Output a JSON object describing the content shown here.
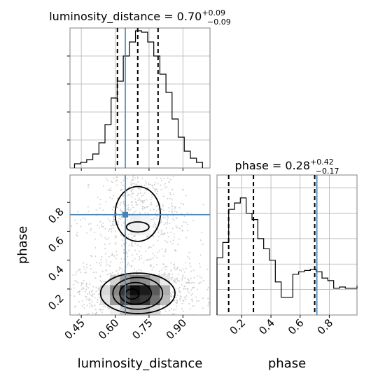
{
  "chart_data": {
    "type": "corner",
    "parameters": [
      "luminosity_distance",
      "phase"
    ],
    "truths": {
      "luminosity_distance": 0.645,
      "phase": 0.715
    },
    "panels": [
      {
        "id": "hist-luminosity_distance",
        "type": "histogram",
        "parameter": "luminosity_distance",
        "title_text": "luminosity_distance = 0.70",
        "title_sup": "+0.09",
        "title_sub": "−0.09",
        "xlim": [
          0.4,
          1.02
        ],
        "ylim": [
          0,
          1.0
        ],
        "bin_edges": [
          0.42,
          0.447,
          0.474,
          0.501,
          0.528,
          0.555,
          0.582,
          0.609,
          0.636,
          0.663,
          0.69,
          0.717,
          0.744,
          0.771,
          0.798,
          0.825,
          0.852,
          0.879,
          0.906,
          0.933,
          0.96,
          0.987
        ],
        "counts": [
          0.03,
          0.04,
          0.06,
          0.1,
          0.18,
          0.31,
          0.5,
          0.62,
          0.8,
          0.9,
          0.98,
          0.97,
          0.9,
          0.8,
          0.67,
          0.54,
          0.35,
          0.22,
          0.12,
          0.07,
          0.04
        ],
        "quantiles": [
          0.61,
          0.7,
          0.79
        ],
        "truth": 0.645
      },
      {
        "id": "hist-phase",
        "type": "histogram",
        "parameter": "phase",
        "title_text": "phase = 0.28",
        "title_sup": "+0.42",
        "title_sub": "−0.17",
        "xlim": [
          0.03,
          0.99
        ],
        "ylim": [
          0,
          1.1
        ],
        "xticks": [
          0.2,
          0.4,
          0.6,
          0.8
        ],
        "xlabel": "phase",
        "bin_edges": [
          0.03,
          0.07,
          0.11,
          0.15,
          0.19,
          0.23,
          0.27,
          0.31,
          0.35,
          0.39,
          0.43,
          0.47,
          0.51,
          0.55,
          0.59,
          0.63,
          0.67,
          0.71,
          0.75,
          0.79,
          0.83,
          0.87,
          0.91,
          0.95,
          0.99
        ],
        "counts": [
          0.45,
          0.57,
          0.83,
          0.88,
          0.92,
          0.8,
          0.75,
          0.6,
          0.52,
          0.43,
          0.26,
          0.14,
          0.14,
          0.32,
          0.34,
          0.35,
          0.36,
          0.34,
          0.29,
          0.27,
          0.21,
          0.22,
          0.21,
          0.21,
          0.23
        ],
        "quantiles": [
          0.11,
          0.28,
          0.7
        ],
        "truth": 0.715
      },
      {
        "id": "scatter-2d",
        "type": "2d-density",
        "x_parameter": "luminosity_distance",
        "y_parameter": "phase",
        "xlim": [
          0.4,
          1.02
        ],
        "ylim": [
          0.02,
          0.99
        ],
        "xticks": [
          0.45,
          0.6,
          0.75,
          0.9
        ],
        "yticks": [
          0.2,
          0.4,
          0.6,
          0.8
        ],
        "xlabel": "luminosity_distance",
        "ylabel": "phase",
        "truth": [
          0.645,
          0.715
        ],
        "density_modes": [
          {
            "x": 0.7,
            "y": 0.17,
            "sx": 0.1,
            "sy": 0.09,
            "w": 1.0
          },
          {
            "x": 0.7,
            "y": 0.64,
            "sx": 0.08,
            "sy": 0.07,
            "w": 0.3
          },
          {
            "x": 0.7,
            "y": 0.86,
            "sx": 0.07,
            "sy": 0.08,
            "w": 0.18
          }
        ],
        "contours": [
          {
            "level": "inner",
            "rings": [
              {
                "cx": 0.675,
                "cy": 0.165,
                "rx": 0.03,
                "ry": 0.035
              }
            ]
          },
          {
            "level": "mid",
            "rings": [
              {
                "cx": 0.69,
                "cy": 0.17,
                "rx": 0.07,
                "ry": 0.075
              },
              {
                "cx": 0.7,
                "cy": 0.63,
                "rx": 0.05,
                "ry": 0.035
              }
            ]
          },
          {
            "level": "outer",
            "rings": [
              {
                "cx": 0.7,
                "cy": 0.17,
                "rx": 0.11,
                "ry": 0.11
              }
            ]
          },
          {
            "level": "outermost",
            "rings": [
              {
                "cx": 0.7,
                "cy": 0.17,
                "rx": 0.165,
                "ry": 0.14
              },
              {
                "cx": 0.7,
                "cy": 0.72,
                "rx": 0.1,
                "ry": 0.19
              }
            ]
          }
        ]
      }
    ]
  }
}
